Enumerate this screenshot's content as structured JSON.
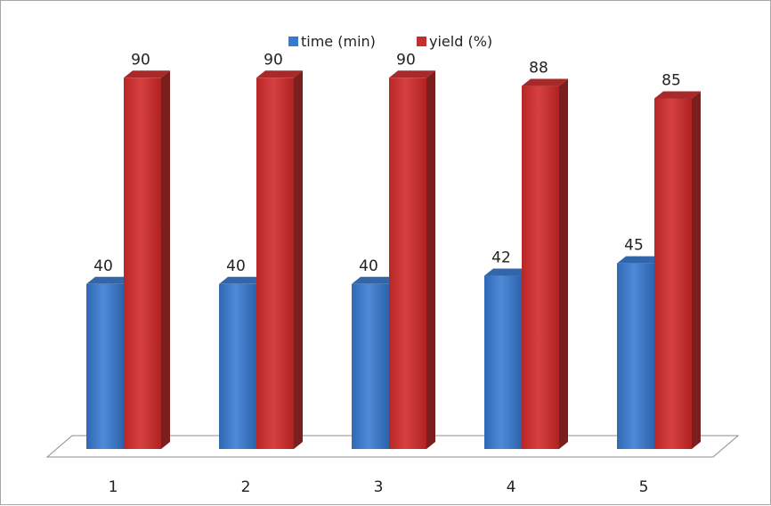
{
  "chart_data": {
    "type": "bar",
    "categories": [
      "1",
      "2",
      "3",
      "4",
      "5"
    ],
    "series": [
      {
        "name": "time (min)",
        "values": [
          40,
          40,
          40,
          42,
          45
        ],
        "color": "#3a78c8"
      },
      {
        "name": "yield (%)",
        "values": [
          90,
          90,
          90,
          88,
          85
        ],
        "color": "#c43030"
      }
    ],
    "title": "",
    "xlabel": "",
    "ylabel": "",
    "ylim": [
      0,
      100
    ],
    "grid": false,
    "legend_position": "top-center",
    "three_d": true
  }
}
